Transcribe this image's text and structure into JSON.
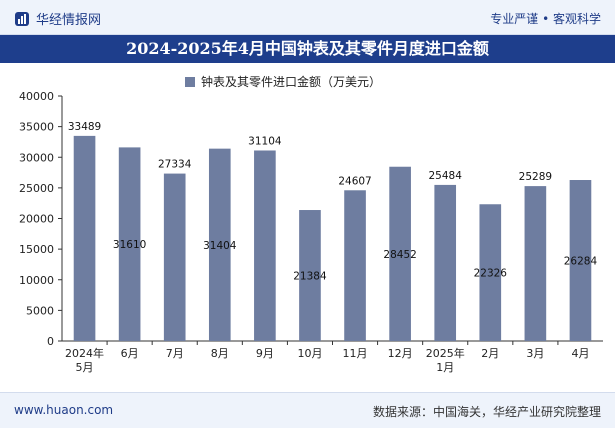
{
  "header": {
    "brand": "华经情报网",
    "tagline": "专业严谨 • 客观科学"
  },
  "title": "2024-2025年4月中国钟表及其零件月度进口金额",
  "footer": {
    "url": "www.huaon.com",
    "source": "数据来源：中国海关，华经产业研究院整理"
  },
  "chart_data": {
    "type": "bar",
    "categories": [
      [
        "2024年",
        "5月"
      ],
      [
        "6月"
      ],
      [
        "7月"
      ],
      [
        "8月"
      ],
      [
        "9月"
      ],
      [
        "10月"
      ],
      [
        "11月"
      ],
      [
        "12月"
      ],
      [
        "2025年",
        "1月"
      ],
      [
        "2月"
      ],
      [
        "3月"
      ],
      [
        "4月"
      ]
    ],
    "series": [
      {
        "name": "钟表及其零件进口金额（万美元）",
        "values": [
          33489,
          31610,
          27334,
          31404,
          31104,
          21384,
          24607,
          28452,
          25484,
          22326,
          25289,
          26284
        ]
      }
    ],
    "label_positions": [
      "above",
      "inside",
      "above",
      "inside",
      "above",
      "inside",
      "above",
      "inside",
      "above",
      "inside",
      "above",
      "inside"
    ],
    "ylim": [
      0,
      40000
    ],
    "yticks": [
      0,
      5000,
      10000,
      15000,
      20000,
      25000,
      30000,
      35000,
      40000
    ],
    "grid": false,
    "legend_position": "top-center",
    "bar_color": "#6e7da0"
  }
}
